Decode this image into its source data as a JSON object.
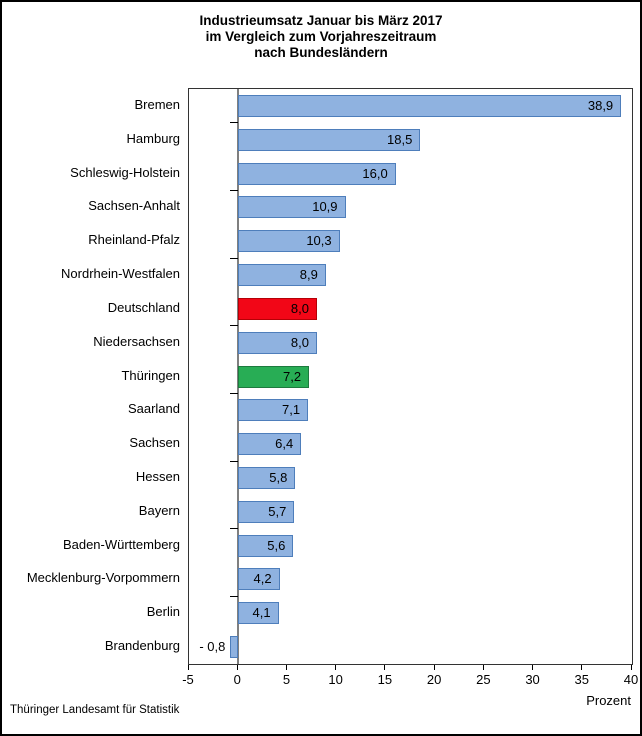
{
  "page": {
    "footer": "Thüringer Landesamt für Statistik"
  },
  "chart_data": {
    "type": "bar",
    "orientation": "horizontal",
    "title_lines": [
      "Industrieumsatz Januar bis März 2017",
      "im Vergleich zum Vorjahreszeitraum",
      "nach Bundesländern"
    ],
    "categories": [
      "Bremen",
      "Hamburg",
      "Schleswig-Holstein",
      "Sachsen-Anhalt",
      "Rheinland-Pfalz",
      "Nordrhein-Westfalen",
      "Deutschland",
      "Niedersachsen",
      "Thüringen",
      "Saarland",
      "Sachsen",
      "Hessen",
      "Bayern",
      "Baden-Württemberg",
      "Mecklenburg-Vorpommern",
      "Berlin",
      "Brandenburg"
    ],
    "values": [
      38.9,
      18.5,
      16.0,
      10.9,
      10.3,
      8.9,
      8.0,
      8.0,
      7.2,
      7.1,
      6.4,
      5.8,
      5.7,
      5.6,
      4.2,
      4.1,
      -0.8
    ],
    "value_labels": [
      "38,9",
      "18,5",
      "16,0",
      "10,9",
      "10,3",
      "8,9",
      "8,0",
      "8,0",
      "7,2",
      "7,1",
      "6,4",
      "5,8",
      "5,7",
      "5,6",
      "4,2",
      "4,1",
      "- 0,8"
    ],
    "bar_styles": [
      "blue",
      "blue",
      "blue",
      "blue",
      "blue",
      "blue",
      "red",
      "blue",
      "green",
      "blue",
      "blue",
      "blue",
      "blue",
      "blue",
      "blue",
      "blue",
      "blue"
    ],
    "xlabel": "Prozent",
    "xlim": [
      -5,
      40
    ],
    "x_ticks": [
      -5,
      0,
      5,
      10,
      15,
      20,
      25,
      30,
      35,
      40
    ],
    "x_tick_labels": [
      "-5",
      "0",
      "5",
      "10",
      "15",
      "20",
      "25",
      "30",
      "35",
      "40"
    ],
    "grid": false,
    "legend": false,
    "palette": {
      "blue_fill": "#8fb2e0",
      "blue_border": "#4e7ebb",
      "red_fill": "#f20617",
      "red_border": "#b50006",
      "green_fill": "#28ad55",
      "green_border": "#1d7a3e",
      "zero_axis": "#7f7f7f"
    }
  }
}
